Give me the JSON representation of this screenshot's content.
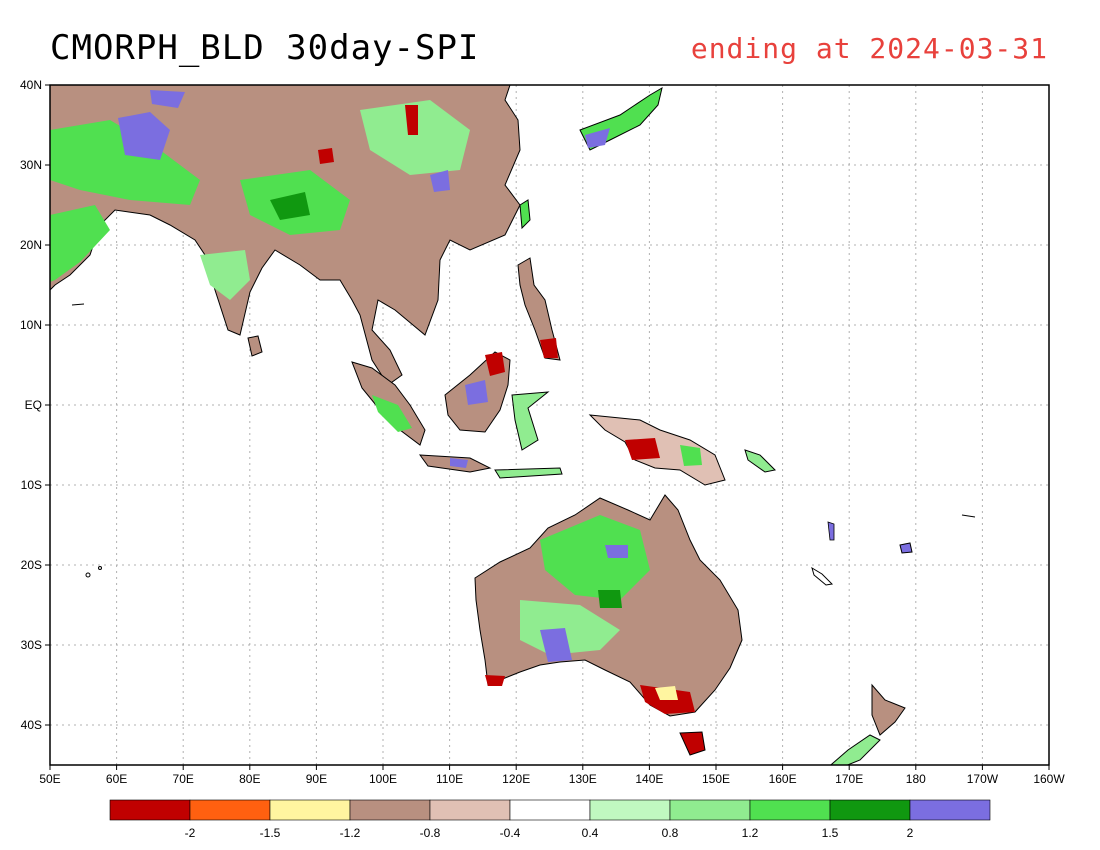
{
  "title": "CMORPH_BLD 30day-SPI",
  "subtitle": "ending at 2024-03-31",
  "map": {
    "lon_range": [
      50,
      200
    ],
    "lat_range": [
      -45,
      40
    ],
    "lon_ticks": [
      {
        "lon": 50,
        "label": "50E"
      },
      {
        "lon": 60,
        "label": "60E"
      },
      {
        "lon": 70,
        "label": "70E"
      },
      {
        "lon": 80,
        "label": "80E"
      },
      {
        "lon": 90,
        "label": "90E"
      },
      {
        "lon": 100,
        "label": "100E"
      },
      {
        "lon": 110,
        "label": "110E"
      },
      {
        "lon": 120,
        "label": "120E"
      },
      {
        "lon": 130,
        "label": "130E"
      },
      {
        "lon": 140,
        "label": "140E"
      },
      {
        "lon": 150,
        "label": "150E"
      },
      {
        "lon": 160,
        "label": "160E"
      },
      {
        "lon": 170,
        "label": "170E"
      },
      {
        "lon": 180,
        "label": "180"
      },
      {
        "lon": 190,
        "label": "170W"
      },
      {
        "lon": 200,
        "label": "160W"
      }
    ],
    "lat_ticks": [
      {
        "lat": 40,
        "label": "40N"
      },
      {
        "lat": 30,
        "label": "30N"
      },
      {
        "lat": 20,
        "label": "20N"
      },
      {
        "lat": 10,
        "label": "10N"
      },
      {
        "lat": 0,
        "label": "EQ"
      },
      {
        "lat": -10,
        "label": "10S"
      },
      {
        "lat": -20,
        "label": "20S"
      },
      {
        "lat": -30,
        "label": "30S"
      },
      {
        "lat": -40,
        "label": "40S"
      }
    ],
    "grid": true
  },
  "colorbar": {
    "colors": [
      "#c00000",
      "#ff6010",
      "#fff5a0",
      "#b89080",
      "#e0c0b4",
      "#ffffff",
      "#c0f8c0",
      "#90ec90",
      "#50e050",
      "#109810",
      "#7b6ee0"
    ],
    "labels": [
      "-2",
      "-1.5",
      "-1.2",
      "-0.8",
      "-0.4",
      "0.4",
      "0.8",
      "1.2",
      "1.5",
      "2"
    ]
  },
  "palette": {
    "land": "#e8f4e0",
    "wet": "#50e050",
    "very_wet": "#109810",
    "extreme_wet": "#7b6ee0",
    "dry": "#b89080",
    "very_dry": "#c00000"
  }
}
